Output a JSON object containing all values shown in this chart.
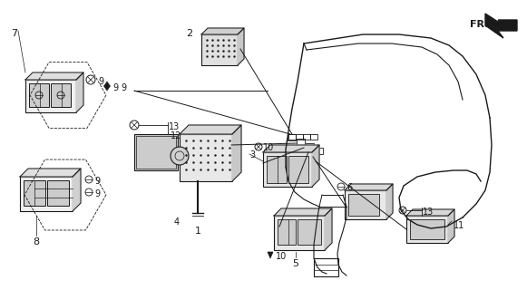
{
  "bg_color": "#ffffff",
  "line_color": "#1a1a1a",
  "fig_width": 5.81,
  "fig_height": 3.2,
  "dpi": 100,
  "gray": "#aaaaaa",
  "darkgray": "#555555"
}
